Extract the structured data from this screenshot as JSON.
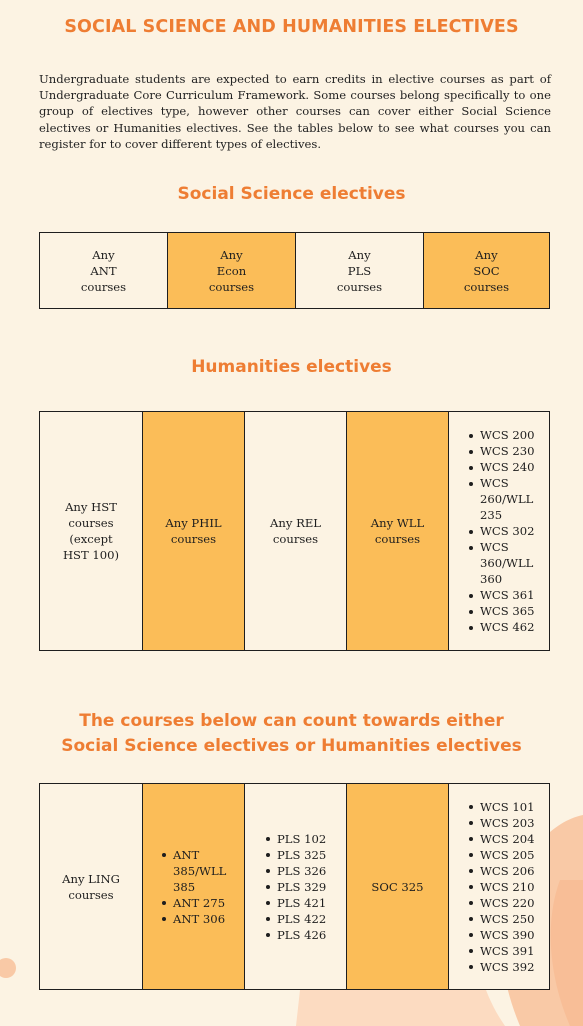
{
  "page": {
    "title": "SOCIAL SCIENCE AND HUMANITIES ELECTIVES",
    "intro": "Undergraduate students are expected to earn credits in elective courses as part of Undergraduate Core Curriculum Framework. Some courses belong specifically to one group of electives type, however other courses can cover either Social Science electives or Humanities electives. See the tables below to see what courses you can register for to cover different types of electives."
  },
  "social_science": {
    "heading": "Social Science electives",
    "cells": [
      "Any\nANT\ncourses",
      "Any\nEcon\ncourses",
      "Any\nPLS\ncourses",
      "Any\nSOC\ncourses"
    ]
  },
  "humanities": {
    "heading": "Humanities electives",
    "cells": [
      "Any HST\ncourses\n(except\nHST 100)",
      "Any PHIL\ncourses",
      "Any REL\ncourses",
      "Any WLL\ncourses"
    ],
    "list": [
      "WCS 200",
      "WCS 230",
      "WCS 240",
      "WCS\n260/WLL\n235",
      "WCS 302",
      "WCS\n360/WLL\n360",
      "WCS 361",
      "WCS 365",
      "WCS 462"
    ]
  },
  "either": {
    "heading": "The courses below can count towards either\nSocial Science electives or Humanities electives",
    "cell1": "Any LING\ncourses",
    "list1": [
      "ANT\n385/WLL\n385",
      "ANT 275",
      "ANT 306"
    ],
    "list2": [
      "PLS 102",
      "PLS 325",
      "PLS 326",
      "PLS 329",
      "PLS 421",
      "PLS 422",
      "PLS 426"
    ],
    "cell4": "SOC 325",
    "list3": [
      "WCS 101",
      "WCS 203",
      "WCS 204",
      "WCS 205",
      "WCS 206",
      "WCS 210",
      "WCS 220",
      "WCS 250",
      "WCS 390",
      "WCS 391",
      "WCS 392"
    ]
  },
  "colors": {
    "background": "#fcf3e3",
    "accent": "#ee7d33",
    "cell_orange": "#fbbd58",
    "decoration": "#f9c9a6"
  }
}
